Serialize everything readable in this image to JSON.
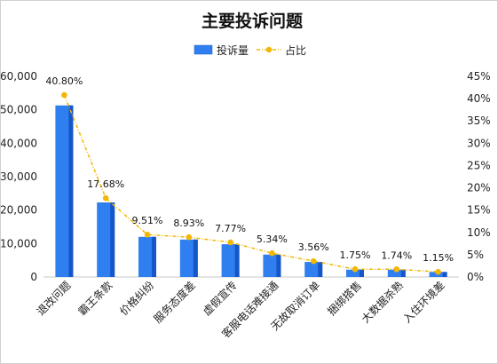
{
  "chart_data": {
    "type": "bar",
    "title": "主要投诉问题",
    "categories": [
      "退改问题",
      "霸王条款",
      "价格纠纷",
      "服务态度差",
      "虚假宣传",
      "客服电话难接通",
      "无故取消订单",
      "捆绑搭售",
      "大数据杀熟",
      "入住环境差"
    ],
    "series": [
      {
        "name": "投诉量",
        "type": "bar",
        "axis": "left",
        "color": "#2f7ff0",
        "values": [
          51300,
          22300,
          12000,
          11200,
          9800,
          6700,
          4500,
          2200,
          2200,
          1500
        ]
      },
      {
        "name": "占比",
        "type": "line",
        "axis": "right",
        "color": "#f2b705",
        "values": [
          40.8,
          17.68,
          9.51,
          8.93,
          7.77,
          5.34,
          3.56,
          1.75,
          1.74,
          1.15
        ]
      }
    ],
    "data_labels": [
      "40.80%",
      "17.68%",
      "9.51%",
      "8.93%",
      "7.77%",
      "5.34%",
      "3.56%",
      "1.75%",
      "1.74%",
      "1.15%"
    ],
    "y_left": {
      "ylim": [
        0,
        60000
      ],
      "ticks": [
        "0",
        "10,000",
        "20,000",
        "30,000",
        "40,000",
        "50,000",
        "60,000"
      ]
    },
    "y_right": {
      "ylim": [
        0,
        45
      ],
      "ticks": [
        "0%",
        "5%",
        "10%",
        "15%",
        "20%",
        "25%",
        "30%",
        "35%",
        "40%",
        "45%"
      ]
    },
    "grid": false,
    "legend_position": "top-center"
  }
}
